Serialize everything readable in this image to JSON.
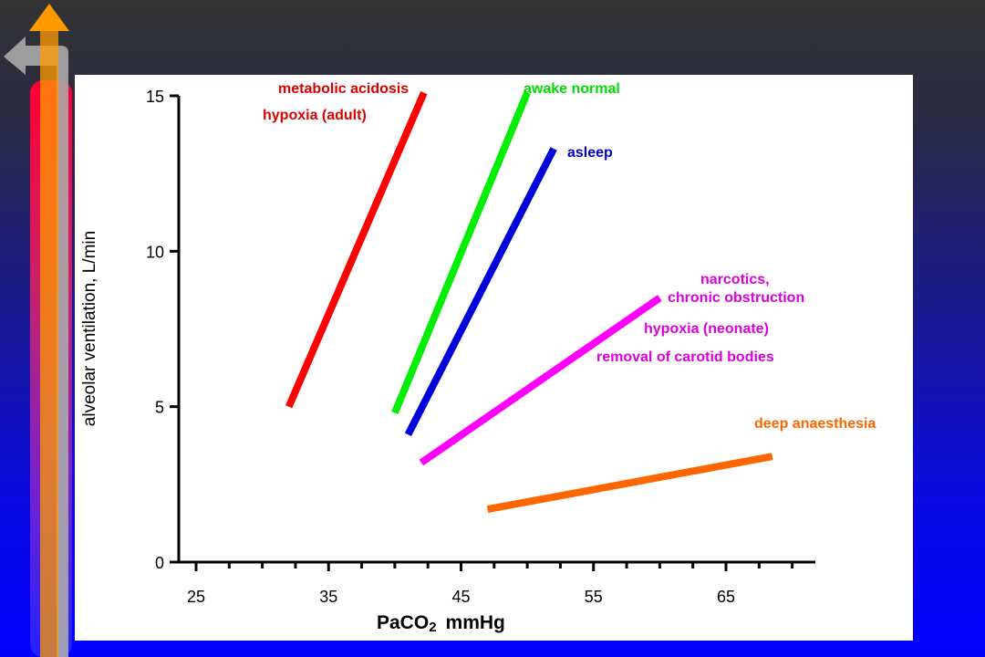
{
  "chart_data": {
    "type": "line",
    "xlabel_main": "PaCO",
    "xlabel_sub": "2",
    "xlabel_unit": "mmHg",
    "ylabel": "alveolar ventilation, L/min",
    "xlim": [
      24,
      70
    ],
    "ylim": [
      0,
      15
    ],
    "xticks": [
      "25",
      "35",
      "45",
      "55",
      "65"
    ],
    "yticks": [
      "0",
      "5",
      "10",
      "15"
    ],
    "grid": false,
    "series": [
      {
        "name": "metabolic acidosis / hypoxia (adult)",
        "color": "#ff0000",
        "x": [
          32,
          42.2
        ],
        "y": [
          5.0,
          15.1
        ]
      },
      {
        "name": "awake normal",
        "color": "#00ee00",
        "x": [
          40,
          50
        ],
        "y": [
          4.8,
          15.1
        ]
      },
      {
        "name": "asleep",
        "color": "#0000dd",
        "x": [
          41,
          52
        ],
        "y": [
          4.1,
          13.3
        ]
      },
      {
        "name": "narcotics, chronic obstruction / hypoxia (neonate) / removal of carotid bodies",
        "color": "#ff00ff",
        "x": [
          42,
          60
        ],
        "y": [
          3.2,
          8.5
        ]
      },
      {
        "name": "deep anaesthesia",
        "color": "#ff6600",
        "x": [
          47,
          68.5
        ],
        "y": [
          1.7,
          3.4
        ]
      }
    ],
    "annotations": [
      {
        "text": "metabolic acidosis",
        "color": "#dd0000"
      },
      {
        "text": "hypoxia (adult)",
        "color": "#dd0000"
      },
      {
        "text": "awake normal",
        "color": "#00dd00"
      },
      {
        "text": "asleep",
        "color": "#0000cc"
      },
      {
        "text": "narcotics,",
        "color": "#dd00dd"
      },
      {
        "text": "chronic obstruction",
        "color": "#dd00dd"
      },
      {
        "text": "hypoxia (neonate)",
        "color": "#dd00dd"
      },
      {
        "text": "removal of carotid bodies",
        "color": "#dd00dd"
      },
      {
        "text": "deep anaesthesia",
        "color": "#ff6600"
      }
    ]
  },
  "decoration": {
    "back_arrow_color": "#aaaaaa",
    "up_arrow_color": "#ff9900",
    "bar_top_color": "#ff0033"
  }
}
